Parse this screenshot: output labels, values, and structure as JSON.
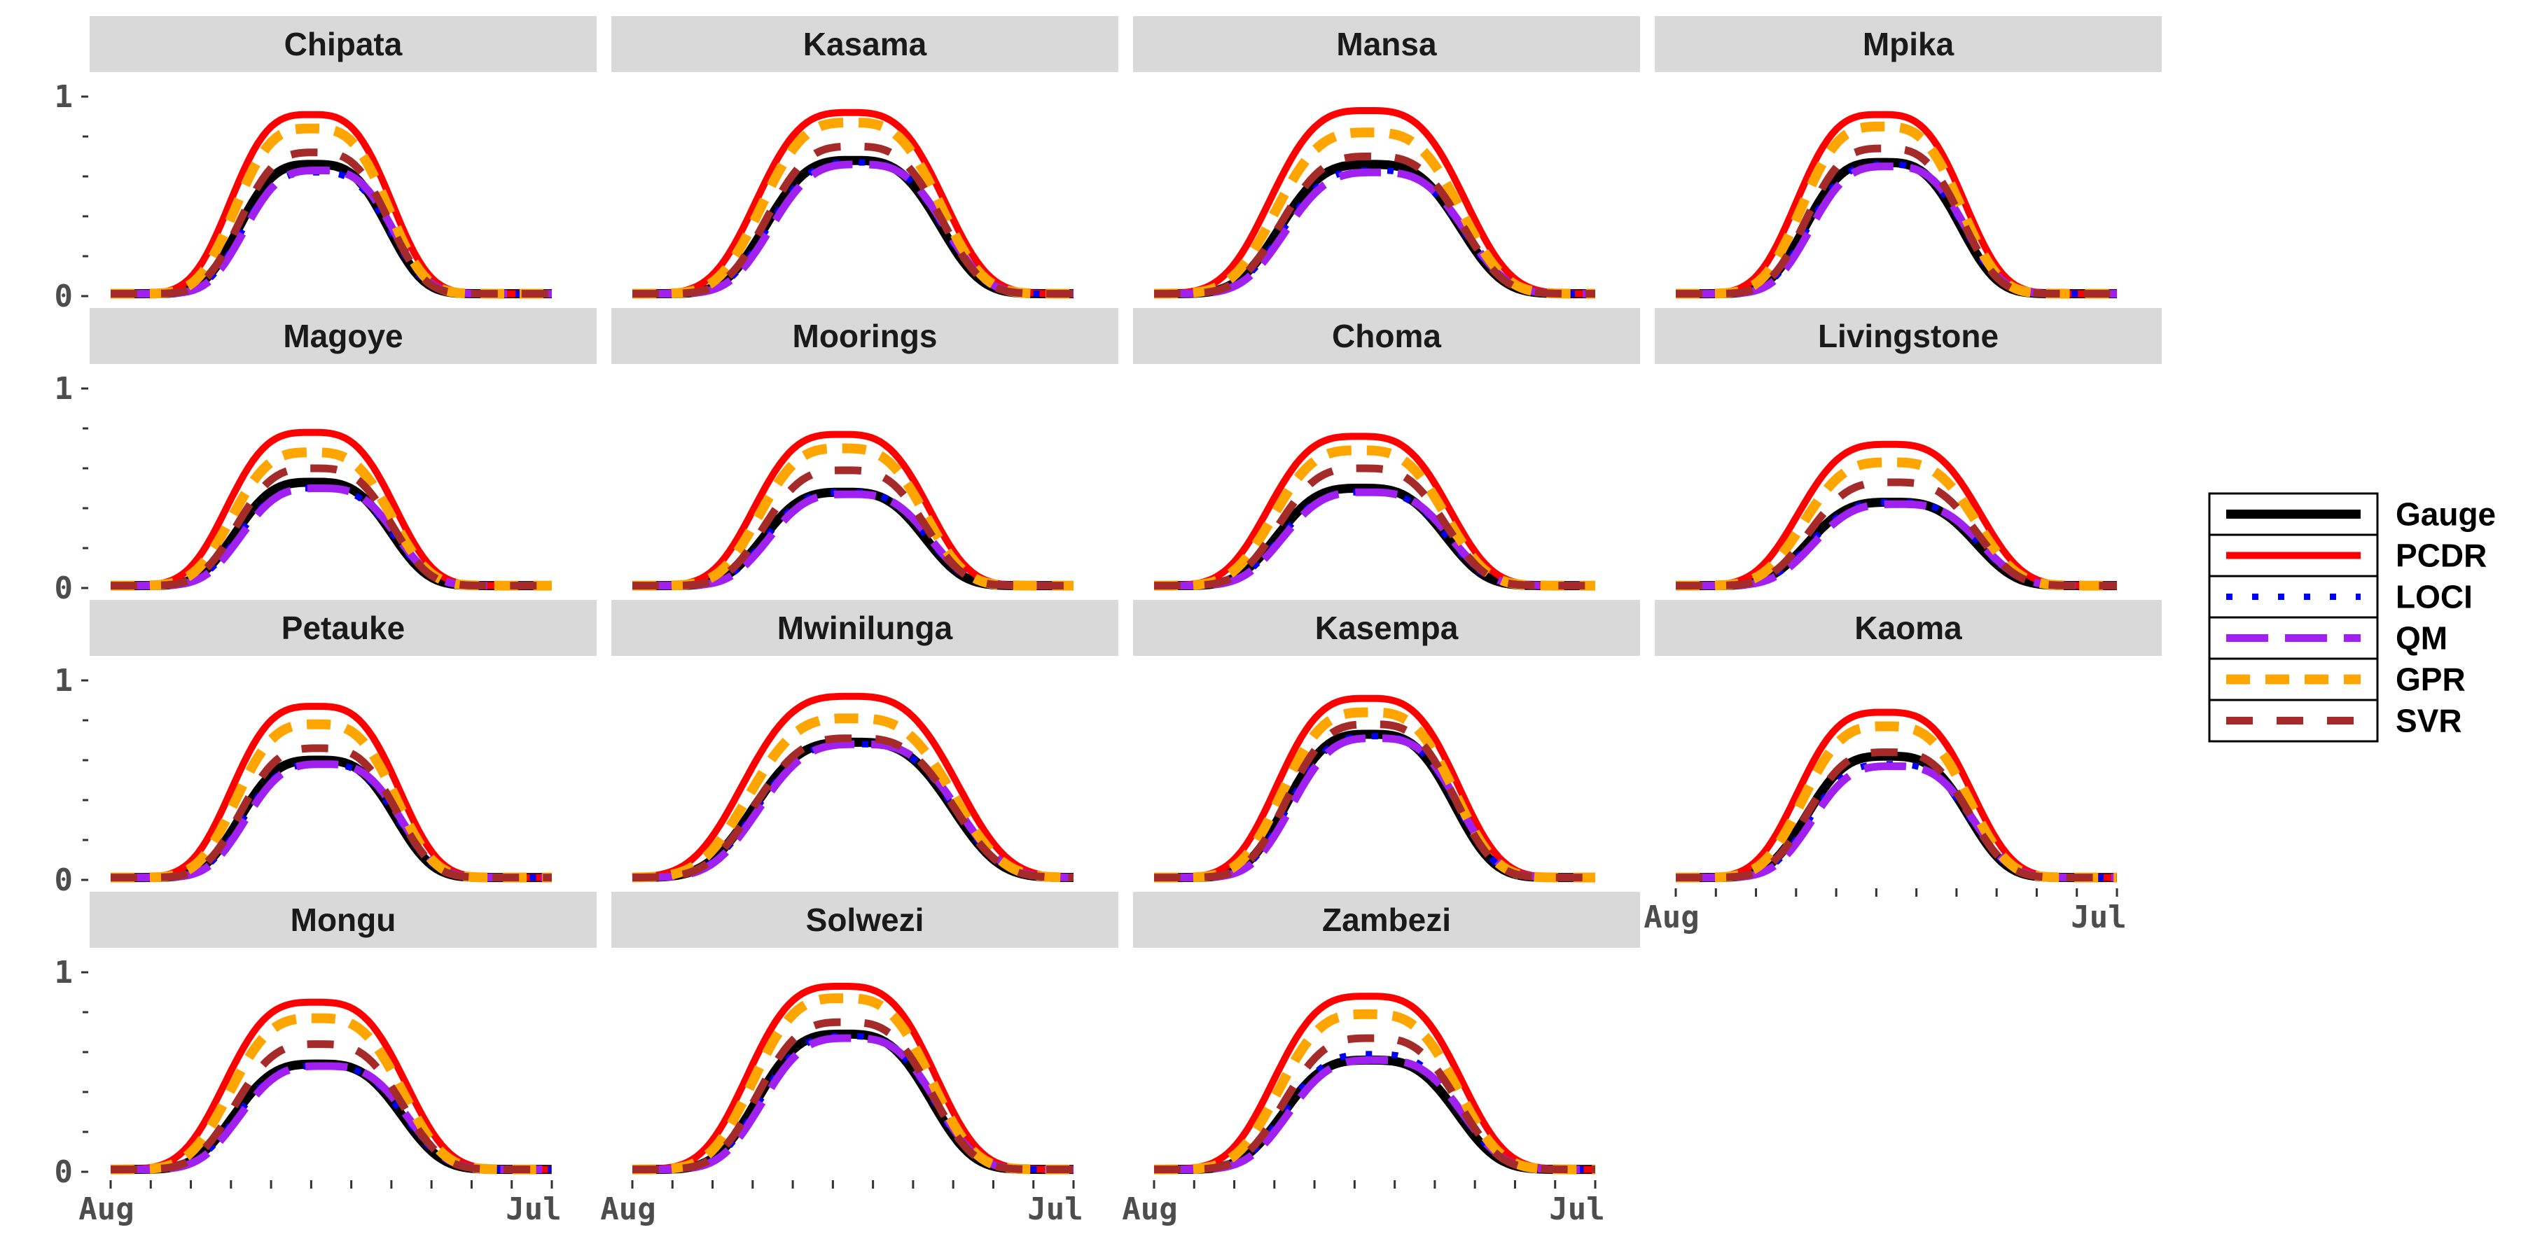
{
  "chart_data": {
    "type": "line",
    "layout": "facet-grid",
    "ylim": [
      0,
      1
    ],
    "y_ticks": [
      "0",
      "1"
    ],
    "x_ticks": [
      "Aug",
      "Jul"
    ],
    "x_minor_tick_count": 12,
    "legend": {
      "placement": "right",
      "entries": [
        {
          "name": "Gauge",
          "color": "#000000",
          "style": "solid-thick"
        },
        {
          "name": "PCDR",
          "color": "#ff0000",
          "style": "solid"
        },
        {
          "name": "LOCI",
          "color": "#0000ff",
          "style": "dotted"
        },
        {
          "name": "QM",
          "color": "#a020f0",
          "style": "long-dash"
        },
        {
          "name": "GPR",
          "color": "#ffa500",
          "style": "dash"
        },
        {
          "name": "SVR",
          "color": "#a52a2a",
          "style": "dash"
        }
      ]
    },
    "panels": [
      {
        "name": "Chipata",
        "peaks": {
          "Gauge": 0.66,
          "PCDR": 0.91,
          "LOCI": 0.62,
          "QM": 0.63,
          "GPR": 0.84,
          "SVR": 0.72
        },
        "center": 0.46,
        "width": 0.24
      },
      {
        "name": "Kasama",
        "peaks": {
          "Gauge": 0.68,
          "PCDR": 0.92,
          "LOCI": 0.67,
          "QM": 0.66,
          "GPR": 0.87,
          "SVR": 0.75
        },
        "center": 0.5,
        "width": 0.28
      },
      {
        "name": "Mansa",
        "peaks": {
          "Gauge": 0.66,
          "PCDR": 0.93,
          "LOCI": 0.63,
          "QM": 0.62,
          "GPR": 0.82,
          "SVR": 0.7
        },
        "center": 0.49,
        "width": 0.29
      },
      {
        "name": "Mpika",
        "peaks": {
          "Gauge": 0.67,
          "PCDR": 0.91,
          "LOCI": 0.66,
          "QM": 0.65,
          "GPR": 0.85,
          "SVR": 0.74
        },
        "center": 0.47,
        "width": 0.25
      },
      {
        "name": "Magoye",
        "peaks": {
          "Gauge": 0.53,
          "PCDR": 0.78,
          "LOCI": 0.5,
          "QM": 0.5,
          "GPR": 0.68,
          "SVR": 0.6
        },
        "center": 0.46,
        "width": 0.25
      },
      {
        "name": "Moorings",
        "peaks": {
          "Gauge": 0.48,
          "PCDR": 0.77,
          "LOCI": 0.48,
          "QM": 0.47,
          "GPR": 0.7,
          "SVR": 0.59
        },
        "center": 0.48,
        "width": 0.26
      },
      {
        "name": "Choma",
        "peaks": {
          "Gauge": 0.5,
          "PCDR": 0.76,
          "LOCI": 0.48,
          "QM": 0.48,
          "GPR": 0.69,
          "SVR": 0.6
        },
        "center": 0.47,
        "width": 0.27
      },
      {
        "name": "Livingstone",
        "peaks": {
          "Gauge": 0.43,
          "PCDR": 0.72,
          "LOCI": 0.43,
          "QM": 0.42,
          "GPR": 0.63,
          "SVR": 0.53
        },
        "center": 0.49,
        "width": 0.27
      },
      {
        "name": "Petauke",
        "peaks": {
          "Gauge": 0.6,
          "PCDR": 0.87,
          "LOCI": 0.58,
          "QM": 0.58,
          "GPR": 0.78,
          "SVR": 0.66
        },
        "center": 0.47,
        "width": 0.25
      },
      {
        "name": "Mwinilunga",
        "peaks": {
          "Gauge": 0.69,
          "PCDR": 0.92,
          "LOCI": 0.68,
          "QM": 0.68,
          "GPR": 0.81,
          "SVR": 0.71
        },
        "center": 0.5,
        "width": 0.32
      },
      {
        "name": "Kasempa",
        "peaks": {
          "Gauge": 0.73,
          "PCDR": 0.91,
          "LOCI": 0.72,
          "QM": 0.71,
          "GPR": 0.84,
          "SVR": 0.78
        },
        "center": 0.49,
        "width": 0.27
      },
      {
        "name": "Kaoma",
        "peaks": {
          "Gauge": 0.62,
          "PCDR": 0.84,
          "LOCI": 0.58,
          "QM": 0.57,
          "GPR": 0.77,
          "SVR": 0.64
        },
        "center": 0.48,
        "width": 0.26
      },
      {
        "name": "Mongu",
        "peaks": {
          "Gauge": 0.54,
          "PCDR": 0.85,
          "LOCI": 0.53,
          "QM": 0.53,
          "GPR": 0.77,
          "SVR": 0.64
        },
        "center": 0.47,
        "width": 0.27
      },
      {
        "name": "Solwezi",
        "peaks": {
          "Gauge": 0.69,
          "PCDR": 0.93,
          "LOCI": 0.68,
          "QM": 0.67,
          "GPR": 0.87,
          "SVR": 0.75
        },
        "center": 0.48,
        "width": 0.28
      },
      {
        "name": "Zambezi",
        "peaks": {
          "Gauge": 0.56,
          "PCDR": 0.88,
          "LOCI": 0.59,
          "QM": 0.56,
          "GPR": 0.79,
          "SVR": 0.67
        },
        "center": 0.49,
        "width": 0.28
      }
    ]
  }
}
